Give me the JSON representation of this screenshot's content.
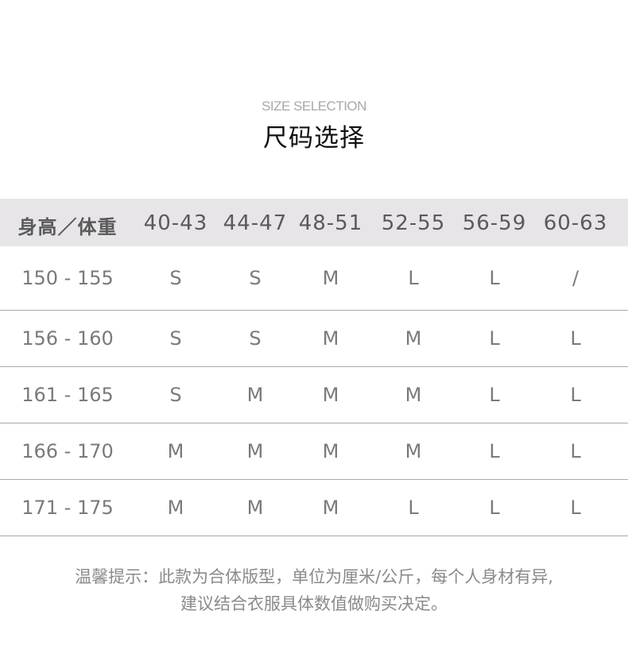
{
  "header": {
    "subtitle": "SIZE SELECTION",
    "title": "尺码选择"
  },
  "table": {
    "columns": [
      "身高／体重",
      "40-43",
      "44-47",
      "48-51",
      "52-55",
      "56-59",
      "60-63"
    ],
    "rows": [
      [
        "150 - 155",
        "S",
        "S",
        "M",
        "L",
        "L",
        "/"
      ],
      [
        "156 - 160",
        "S",
        "S",
        "M",
        "M",
        "L",
        "L"
      ],
      [
        "161 - 165",
        "S",
        "M",
        "M",
        "M",
        "L",
        "L"
      ],
      [
        "166 - 170",
        "M",
        "M",
        "M",
        "M",
        "L",
        "L"
      ],
      [
        "171 - 175",
        "M",
        "M",
        "M",
        "L",
        "L",
        "L"
      ]
    ]
  },
  "note": {
    "line1": "温馨提示：此款为合体版型，单位为厘米/公斤，每个人身材有异,",
    "line2": "建议结合衣服具体数值做购买决定。"
  },
  "colors": {
    "header_bg": "#e8e5e9",
    "divider": "#a9a9a9",
    "text": "#7a7a7a"
  }
}
